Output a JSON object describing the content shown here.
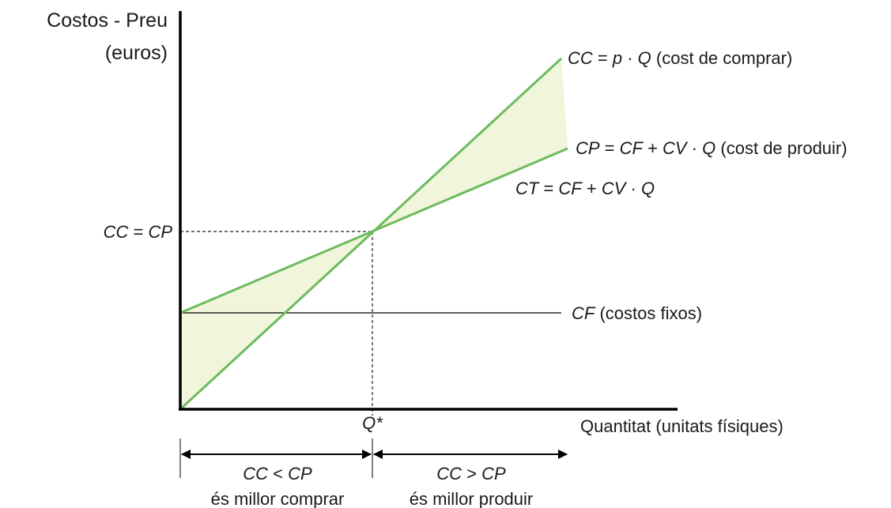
{
  "y_axis": {
    "title_line1": "Costos - Preu",
    "title_line2": "(euros)"
  },
  "x_axis": {
    "title": "Quantitat (unitats físiques)"
  },
  "colors": {
    "line": "#6dbb5e",
    "fill": "#f0f5dc",
    "axis": "#000000",
    "guide": "#222222"
  },
  "lines": {
    "cc": {
      "name": "CC = p · Q",
      "parts": {
        "a": "CC",
        "b": " = ",
        "c": "p",
        "d": " · ",
        "e": "Q",
        "f": " (cost de comprar)"
      }
    },
    "cp": {
      "name": "CP = CF + CV · Q",
      "parts": {
        "a": "CP",
        "b": " = ",
        "c": "CF",
        "d": " + ",
        "e": "CV",
        "f": " · ",
        "g": "Q",
        "h": " (cost de produir)"
      }
    },
    "ct": {
      "name": "CT = CF + CV · Q",
      "parts": {
        "a": "CT",
        "b": " = ",
        "c": "CF",
        "d": " + ",
        "e": "CV",
        "f": " · ",
        "g": "Q"
      }
    },
    "cf": {
      "name": "CF (costos fixos)",
      "parts": {
        "a": "CF",
        "b": " (costos fixos)"
      }
    }
  },
  "intersection": {
    "y_label": {
      "a": "CC",
      "b": " = ",
      "c": "CP"
    },
    "x_label": "Q*"
  },
  "regions": {
    "left": {
      "relation": {
        "a": "CC",
        "b": " < ",
        "c": "CP"
      },
      "text": "és millor comprar"
    },
    "right": {
      "relation": {
        "a": "CC",
        "b": " > ",
        "c": "CP"
      },
      "text": "és millor produir"
    }
  }
}
